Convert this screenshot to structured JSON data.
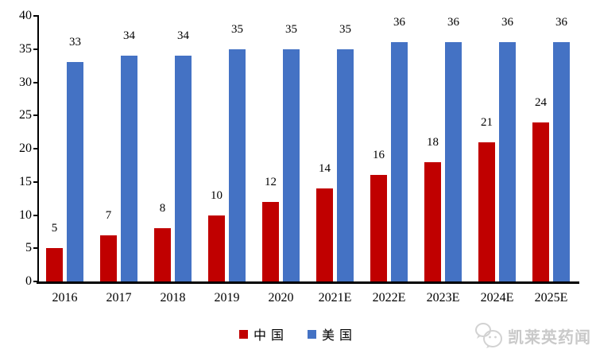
{
  "chart_data": {
    "type": "bar",
    "title": "",
    "xlabel": "",
    "ylabel": "",
    "categories": [
      "2016",
      "2017",
      "2018",
      "2019",
      "2020",
      "2021E",
      "2022E",
      "2023E",
      "2024E",
      "2025E"
    ],
    "series": [
      {
        "name": "中国",
        "color": "#C00000",
        "values": [
          5,
          7,
          8,
          10,
          12,
          14,
          16,
          18,
          21,
          24
        ]
      },
      {
        "name": "美国",
        "color": "#4472C4",
        "values": [
          33,
          34,
          34,
          35,
          35,
          35,
          36,
          36,
          36,
          36
        ]
      }
    ],
    "ylim": [
      0,
      40
    ],
    "yticks": [
      0,
      5,
      10,
      15,
      20,
      25,
      30,
      35,
      40
    ],
    "grid": false,
    "data_labels": true,
    "legend_position": "bottom"
  },
  "colors": {
    "china_red": "#C00000",
    "usa_blue": "#4472C4",
    "axis_black": "#000000",
    "watermark_gray": "#c9c9c9"
  },
  "watermark": {
    "icon": "wechat-chat-bubbles-icon",
    "text": "凯莱英药闻"
  }
}
